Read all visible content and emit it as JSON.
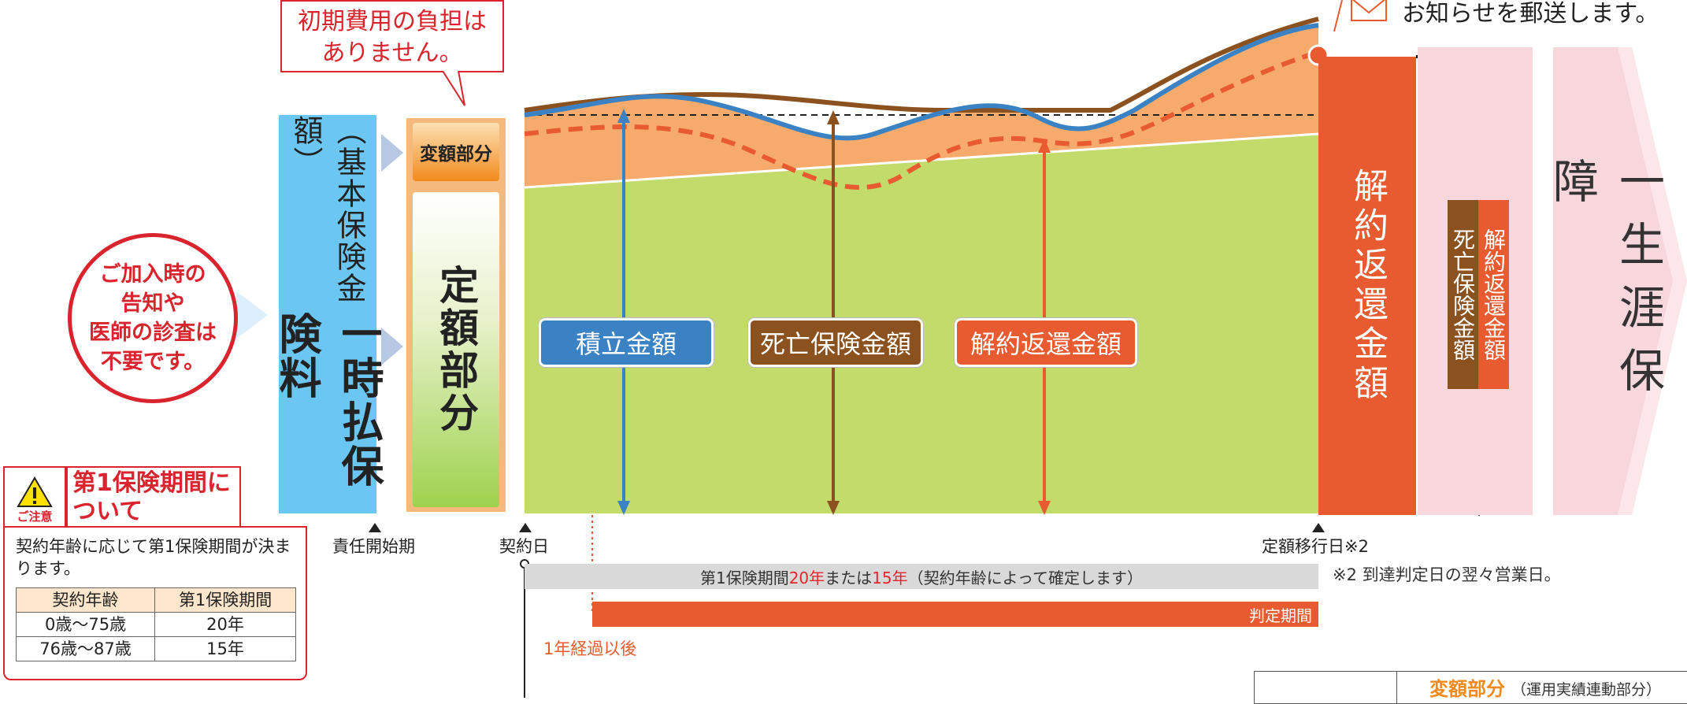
{
  "callout": {
    "line1": "初期費用の負担は",
    "line2": "ありません。"
  },
  "notice_text": "お知らせを郵送します。",
  "circle": {
    "line1": "ご加入時の",
    "line2": "告知や",
    "line3": "医師の診査は",
    "line4": "不要です。"
  },
  "premium": {
    "main": "一時払保険料",
    "sub": "（基本保険金額）"
  },
  "box_variable": "変額部分",
  "box_fixed": "定額部分",
  "labels": {
    "accumulation": "積立金額",
    "death": "死亡保険金額",
    "surrender": "解約返還金額"
  },
  "red_column": "解約返還金額",
  "split": {
    "left": "死亡保険金額",
    "right": "解約返還金額"
  },
  "lifetime": "一生涯保障",
  "ticks": {
    "start_liability": "責任開始期",
    "contract_day": "契約日",
    "transition_day": "定額移行日※2"
  },
  "note2": "※2 到達判定日の翌々営業日。",
  "bar_grey": {
    "part1": "第1保険期間",
    "part2": "20年",
    "part3": "または",
    "part4": "15年",
    "part5": "（契約年齢によって確定します）"
  },
  "bar_red": "判定期間",
  "after_one_year": "1年経過以後",
  "caution": {
    "badge": "ご注意",
    "title": "第1保険期間について",
    "body": "契約年齢に応じて第1保険期間が決まります。",
    "table": {
      "headers": [
        "契約年齢",
        "第1保険期間"
      ],
      "rows": [
        [
          "0歳〜75歳",
          "20年"
        ],
        [
          "76歳〜87歳",
          "15年"
        ]
      ]
    }
  },
  "bottom_right": {
    "term": "変額部分",
    "sub": "（運用実績連動部分）"
  },
  "colors": {
    "blue": "#6cc6f2",
    "green": "#c3db6a",
    "orange": "#f6ab6c",
    "red": "#e85a30",
    "brown": "#8b521f",
    "pink": "#f7d6dc"
  }
}
